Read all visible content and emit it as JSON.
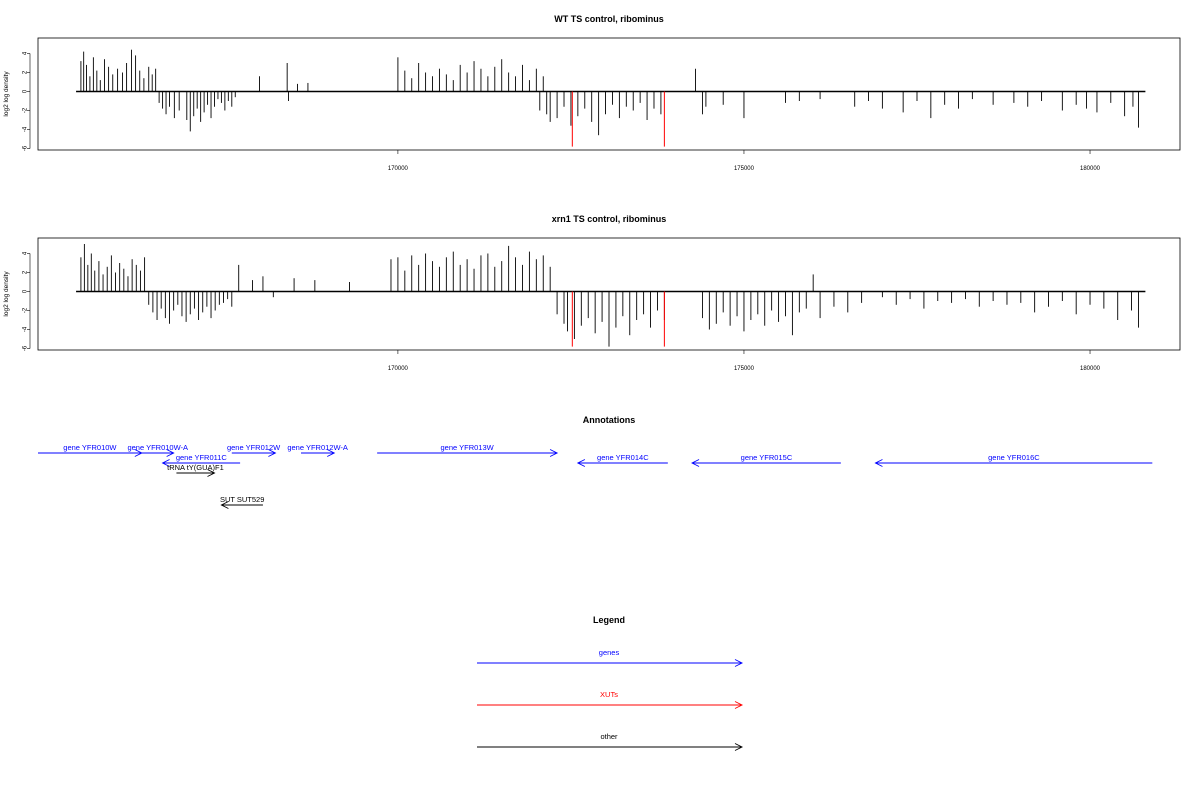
{
  "chart_data": [
    {
      "type": "bar",
      "title": "WT TS control, ribominus",
      "ylabel": "log2 log density",
      "xlabel": "",
      "xlim": [
        164800,
        181300
      ],
      "ylim": [
        -6,
        5
      ],
      "yticks": [
        -6,
        -4,
        -2,
        0,
        2,
        4
      ],
      "xticks": [
        170000,
        175000,
        180000
      ],
      "xtick_labels": [
        "170000",
        "175000",
        "180000"
      ],
      "baseline": {
        "x_start": 165350,
        "x_end": 180800
      },
      "series": [
        {
          "color": "#000000",
          "x": [
            165420,
            165460,
            165500,
            165550,
            165600,
            165650,
            165700,
            165760,
            165820,
            165880,
            165950,
            166020,
            166080,
            166150,
            166210,
            166270,
            166330,
            166400,
            166450,
            166500,
            166550,
            166600,
            166650,
            166700,
            166770,
            166840,
            166950,
            167000,
            167050,
            167100,
            167150,
            167200,
            167250,
            167300,
            167350,
            167400,
            167450,
            167500,
            167550,
            167600,
            167650,
            168000,
            168400,
            168420,
            168550,
            168700,
            170000,
            170100,
            170200,
            170300,
            170400,
            170500,
            170600,
            170700,
            170800,
            170900,
            171000,
            171100,
            171200,
            171300,
            171400,
            171500,
            171600,
            171700,
            171800,
            171900,
            172000,
            172050,
            172100,
            172150,
            172200,
            172300,
            172400,
            172500,
            172600,
            172700,
            172800,
            172900,
            173000,
            173100,
            173200,
            173300,
            173400,
            173500,
            173600,
            173700,
            173800,
            174300,
            174400,
            174450,
            174700,
            175000,
            175600,
            175800,
            176100,
            176600,
            176800,
            177000,
            177300,
            177500,
            177700,
            177900,
            178100,
            178300,
            178600,
            178900,
            179100,
            179300,
            179600,
            179800,
            179950,
            180100,
            180300,
            180500,
            180620,
            180700
          ],
          "values": [
            3.2,
            4.2,
            2.8,
            1.6,
            3.6,
            2.2,
            1.2,
            3.4,
            2.6,
            1.8,
            2.4,
            2.0,
            3.0,
            4.4,
            3.8,
            2.2,
            1.4,
            2.6,
            1.8,
            2.4,
            -1.2,
            -1.8,
            -2.4,
            -1.6,
            -2.8,
            -2.0,
            -3.0,
            -4.2,
            -2.6,
            -1.8,
            -3.2,
            -2.2,
            -1.4,
            -2.8,
            -1.6,
            -0.8,
            -1.2,
            -2.0,
            -1.0,
            -1.6,
            -0.6,
            1.6,
            3.0,
            -1.0,
            0.8,
            0.9,
            3.6,
            2.2,
            1.4,
            3.0,
            2.0,
            1.6,
            2.4,
            1.8,
            1.2,
            2.8,
            2.0,
            3.2,
            2.4,
            1.6,
            2.6,
            3.4,
            2.0,
            1.6,
            2.8,
            1.2,
            2.4,
            -2.0,
            1.6,
            -2.4,
            -3.2,
            -2.8,
            -1.6,
            -3.6,
            -2.6,
            -1.8,
            -3.2,
            -4.6,
            -2.4,
            -1.4,
            -2.8,
            -1.6,
            -2.0,
            -1.2,
            -3.0,
            -1.8,
            -2.4,
            2.4,
            -2.4,
            -1.6,
            -1.4,
            -2.8,
            -1.2,
            -1.0,
            -0.8,
            -1.6,
            -1.0,
            -1.8,
            -2.2,
            -1.0,
            -2.8,
            -1.4,
            -1.8,
            -0.8,
            -1.4,
            -1.2,
            -1.6,
            -1.0,
            -2.0,
            -1.4,
            -1.8,
            -2.2,
            -1.2,
            -2.6,
            -1.6,
            -3.8
          ]
        },
        {
          "color": "#ff0000",
          "x": [
            172520,
            173850
          ],
          "values": [
            -5.8,
            -5.8
          ]
        }
      ]
    },
    {
      "type": "bar",
      "title": "xrn1 TS control, ribominus",
      "ylabel": "log2 log density",
      "xlabel": "",
      "xlim": [
        164800,
        181300
      ],
      "ylim": [
        -6,
        5
      ],
      "yticks": [
        -6,
        -4,
        -2,
        0,
        2,
        4
      ],
      "xticks": [
        170000,
        175000,
        180000
      ],
      "xtick_labels": [
        "170000",
        "175000",
        "180000"
      ],
      "baseline": {
        "x_start": 165350,
        "x_end": 180800
      },
      "series": [
        {
          "color": "#000000",
          "x": [
            165420,
            165470,
            165520,
            165570,
            165620,
            165680,
            165740,
            165800,
            165860,
            165920,
            165980,
            166040,
            166100,
            166160,
            166220,
            166280,
            166340,
            166400,
            166460,
            166520,
            166580,
            166640,
            166700,
            166760,
            166820,
            166880,
            166940,
            167000,
            167060,
            167120,
            167180,
            167240,
            167300,
            167360,
            167420,
            167480,
            167540,
            167600,
            167700,
            167900,
            168050,
            168200,
            168500,
            168800,
            169300,
            169900,
            170000,
            170100,
            170200,
            170300,
            170400,
            170500,
            170600,
            170700,
            170800,
            170900,
            171000,
            171100,
            171200,
            171300,
            171400,
            171500,
            171600,
            171700,
            171800,
            171900,
            172000,
            172100,
            172200,
            172300,
            172400,
            172450,
            172550,
            172650,
            172750,
            172850,
            172950,
            173050,
            173150,
            173250,
            173350,
            173450,
            173550,
            173650,
            173750,
            173850,
            174400,
            174500,
            174600,
            174700,
            174800,
            174900,
            175000,
            175100,
            175200,
            175300,
            175400,
            175500,
            175600,
            175700,
            175800,
            175900,
            176000,
            176100,
            176300,
            176500,
            176700,
            177000,
            177200,
            177400,
            177600,
            177800,
            178000,
            178200,
            178400,
            178600,
            178800,
            179000,
            179200,
            179400,
            179600,
            179800,
            180000,
            180200,
            180400,
            180600,
            180700
          ],
          "values": [
            3.6,
            5.0,
            2.8,
            4.0,
            2.2,
            3.2,
            1.8,
            2.6,
            3.8,
            2.0,
            3.0,
            2.4,
            1.6,
            3.4,
            2.8,
            2.2,
            3.6,
            -1.4,
            -2.2,
            -3.0,
            -1.8,
            -2.8,
            -3.4,
            -2.0,
            -1.4,
            -2.6,
            -3.2,
            -2.4,
            -1.8,
            -3.0,
            -2.2,
            -1.6,
            -2.8,
            -2.0,
            -1.4,
            -1.2,
            -0.8,
            -1.6,
            2.8,
            1.2,
            1.6,
            -0.6,
            1.4,
            1.2,
            1.0,
            3.4,
            3.6,
            2.2,
            3.8,
            2.8,
            4.0,
            3.2,
            2.6,
            3.6,
            4.2,
            2.8,
            3.4,
            2.4,
            3.8,
            4.0,
            2.6,
            3.2,
            4.8,
            3.6,
            2.8,
            4.2,
            3.4,
            3.8,
            2.6,
            -2.4,
            -3.4,
            -4.2,
            -5.0,
            -3.6,
            -2.8,
            -4.4,
            -3.2,
            -5.8,
            -3.8,
            -2.6,
            -4.6,
            -3.0,
            -2.4,
            -3.8,
            -2.0,
            -3.0,
            -2.8,
            -4.0,
            -3.4,
            -2.2,
            -3.6,
            -2.6,
            -4.2,
            -3.0,
            -2.4,
            -3.6,
            -2.0,
            -3.2,
            -2.6,
            -4.6,
            -2.2,
            -1.8,
            1.8,
            -2.8,
            -1.6,
            -2.2,
            -1.2,
            -0.6,
            -1.4,
            -0.8,
            -1.8,
            -1.0,
            -1.2,
            -0.8,
            -1.6,
            -1.0,
            -1.4,
            -1.2,
            -2.2,
            -1.6,
            -1.0,
            -2.4,
            -1.4,
            -1.8,
            -3.0,
            -2.0,
            -3.8
          ]
        },
        {
          "color": "#ff0000",
          "x": [
            172520,
            173850
          ],
          "values": [
            -5.8,
            -5.8
          ]
        }
      ]
    }
  ],
  "annotations": {
    "title": "Annotations",
    "features": [
      {
        "label": "gene YFR010W",
        "x1": 164800,
        "x2": 166300,
        "row": 0,
        "dir": "right",
        "color": "#0000ff"
      },
      {
        "label": "gene YFR010W-A",
        "x1": 166300,
        "x2": 166760,
        "row": 0,
        "dir": "right",
        "color": "#0000ff"
      },
      {
        "label": "gene YFR011C",
        "x1": 166600,
        "x2": 167720,
        "row": 1,
        "dir": "left",
        "color": "#0000ff"
      },
      {
        "label": "gene YFR012W",
        "x1": 167600,
        "x2": 168230,
        "row": 0,
        "dir": "right",
        "color": "#0000ff"
      },
      {
        "label": "gene YFR012W-A",
        "x1": 168600,
        "x2": 169080,
        "row": 0,
        "dir": "right",
        "color": "#0000ff"
      },
      {
        "label": "gene YFR013W",
        "x1": 169700,
        "x2": 172300,
        "row": 0,
        "dir": "right",
        "color": "#0000ff"
      },
      {
        "label": "gene YFR014C",
        "x1": 172600,
        "x2": 173900,
        "row": 1,
        "dir": "left",
        "color": "#0000ff"
      },
      {
        "label": "gene YFR015C",
        "x1": 174250,
        "x2": 176400,
        "row": 1,
        "dir": "left",
        "color": "#0000ff"
      },
      {
        "label": "gene YFR016C",
        "x1": 176900,
        "x2": 180900,
        "row": 1,
        "dir": "left",
        "color": "#0000ff"
      },
      {
        "label": "tRNA tY(GUA)F1",
        "x1": 166800,
        "x2": 167350,
        "row": 2,
        "dir": "right",
        "color": "#000000"
      },
      {
        "label": "SUT SUT529",
        "x1": 167450,
        "x2": 168050,
        "row": 4,
        "dir": "left",
        "color": "#000000"
      }
    ]
  },
  "legend": {
    "title": "Legend",
    "items": [
      {
        "label": "genes",
        "color": "#0000ff"
      },
      {
        "label": "XUTs",
        "color": "#ff0000"
      },
      {
        "label": "other",
        "color": "#000000"
      }
    ]
  }
}
